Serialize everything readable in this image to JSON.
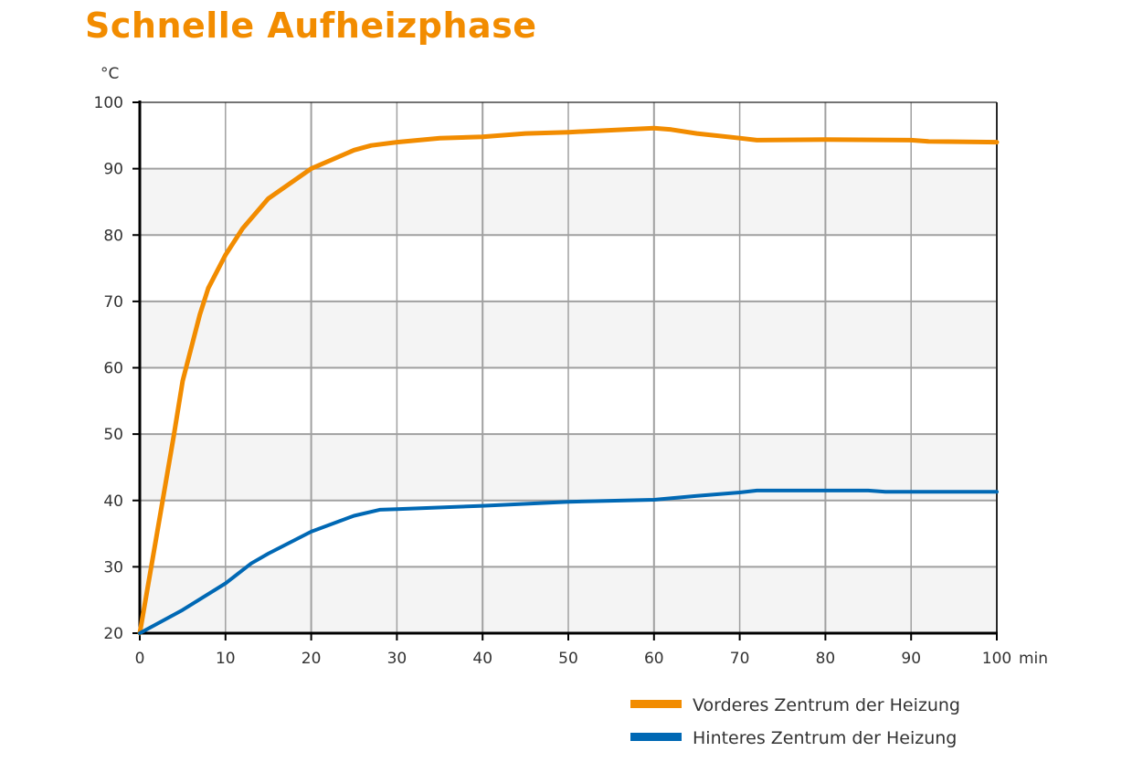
{
  "title": "Schnelle Aufheizphase",
  "colors": {
    "front": "#F28C00",
    "back": "#0068B4",
    "band": "#F4F4F4",
    "grid": "#A0A0A0"
  },
  "chart_data": {
    "type": "line",
    "title": "Schnelle Aufheizphase",
    "xlabel": "min",
    "ylabel": "°C",
    "xlim": [
      0,
      100
    ],
    "ylim": [
      20,
      100
    ],
    "xticks": [
      0,
      10,
      20,
      30,
      40,
      50,
      60,
      70,
      80,
      90,
      100
    ],
    "yticks": [
      20,
      30,
      40,
      50,
      60,
      70,
      80,
      90,
      100
    ],
    "grid": true,
    "legend": "bottom-right",
    "series": [
      {
        "name": "Vorderes Zentrum der Heizung",
        "color": "#F28C00",
        "x": [
          0,
          2,
          4,
          5,
          7,
          8,
          10,
          12,
          15,
          20,
          25,
          27,
          30,
          35,
          40,
          45,
          50,
          55,
          60,
          62,
          65,
          70,
          72,
          80,
          90,
          92,
          100
        ],
        "y": [
          20,
          35,
          50,
          58,
          68,
          72,
          77,
          81,
          85.5,
          90,
          92.8,
          93.5,
          94,
          94.6,
          94.8,
          95.3,
          95.5,
          95.8,
          96.1,
          95.9,
          95.3,
          94.6,
          94.3,
          94.4,
          94.3,
          94.1,
          94
        ]
      },
      {
        "name": "Hinteres Zentrum der Heizung",
        "color": "#0068B4",
        "x": [
          0,
          5,
          10,
          13,
          15,
          20,
          25,
          28,
          30,
          40,
          50,
          60,
          65,
          70,
          72,
          85,
          87,
          100
        ],
        "y": [
          20,
          23.5,
          27.5,
          30.5,
          32,
          35.3,
          37.7,
          38.6,
          38.7,
          39.2,
          39.8,
          40.1,
          40.7,
          41.2,
          41.5,
          41.5,
          41.3,
          41.3
        ]
      }
    ]
  }
}
